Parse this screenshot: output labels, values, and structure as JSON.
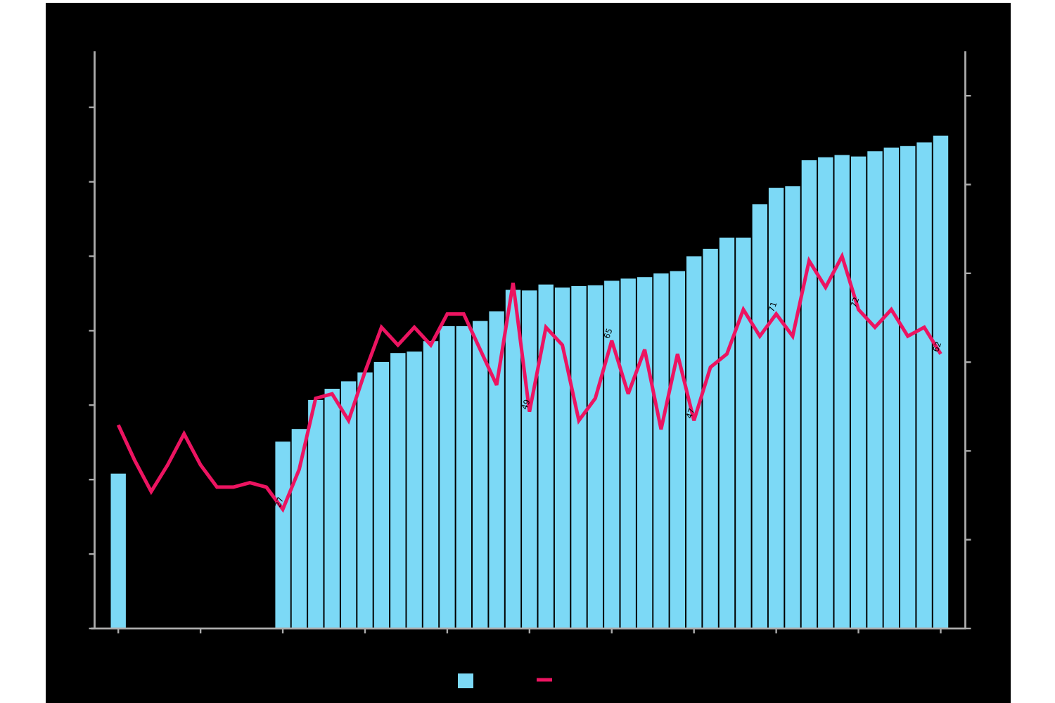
{
  "colors": {
    "background": "#ffffff",
    "panel": "#000000",
    "bars": "#7CD9F6",
    "line": "#EC1461",
    "axis": "#ABABAB",
    "annotation": "#000000"
  },
  "chart_data": {
    "type": "bar+line",
    "description": "Dual-axis combo chart on black panel: sky-blue bars (left axis) with a crimson line (right axis); every 5th line point is annotated, tick labels are not visible",
    "x_tick_indices": [
      0,
      5,
      10,
      15,
      20,
      25,
      30,
      35,
      40,
      45,
      50
    ],
    "x_axis": {
      "tick_count": 11,
      "labels_visible": false
    },
    "left_axis": {
      "tick_count": 8,
      "tick_step_units": 10,
      "range": [
        0,
        77
      ],
      "labels_visible": false
    },
    "right_axis": {
      "tick_count": 7,
      "tick_step_units": 20,
      "range": [
        0,
        130
      ],
      "labels_visible": false
    },
    "grid": false,
    "bar_series": {
      "name": "bars",
      "axis": "left",
      "color": "#7CD9F6",
      "values": [
        20.8,
        null,
        null,
        null,
        null,
        null,
        null,
        null,
        null,
        null,
        25.1,
        26.8,
        30.7,
        32.2,
        33.2,
        34.4,
        35.8,
        37.0,
        37.2,
        38.6,
        40.6,
        40.6,
        41.3,
        42.6,
        45.5,
        45.4,
        46.2,
        45.8,
        46.0,
        46.1,
        46.7,
        47.0,
        47.2,
        47.7,
        48.0,
        50.0,
        51.0,
        52.5,
        52.5,
        57.0,
        59.2,
        59.4,
        62.9,
        63.3,
        63.6,
        63.4,
        64.1,
        64.6,
        64.8,
        65.3,
        66.2
      ]
    },
    "line_series": {
      "name": "line",
      "axis": "right",
      "color": "#EC1461",
      "values": [
        46,
        38,
        31,
        37,
        44,
        37,
        32,
        32,
        33,
        32,
        27,
        36,
        52,
        53,
        47,
        58,
        68,
        64,
        68,
        64,
        71,
        71,
        63,
        55,
        78,
        49,
        68,
        64,
        47,
        52,
        65,
        53,
        63,
        45,
        62,
        47,
        59,
        62,
        72,
        66,
        71,
        66,
        83,
        77,
        84,
        72,
        68,
        72,
        66,
        68,
        62
      ]
    },
    "annotations": [
      {
        "index": 10,
        "text": "27"
      },
      {
        "index": 25,
        "text": "49"
      },
      {
        "index": 30,
        "text": "65"
      },
      {
        "index": 35,
        "text": "47"
      },
      {
        "index": 40,
        "text": "71"
      },
      {
        "index": 45,
        "text": "72"
      },
      {
        "index": 50,
        "text": "62"
      }
    ],
    "legend": {
      "position": "bottom-center",
      "entries": [
        {
          "marker": "square",
          "color": "#7CD9F6",
          "label": ""
        },
        {
          "marker": "line",
          "color": "#EC1461",
          "label": ""
        }
      ]
    }
  }
}
